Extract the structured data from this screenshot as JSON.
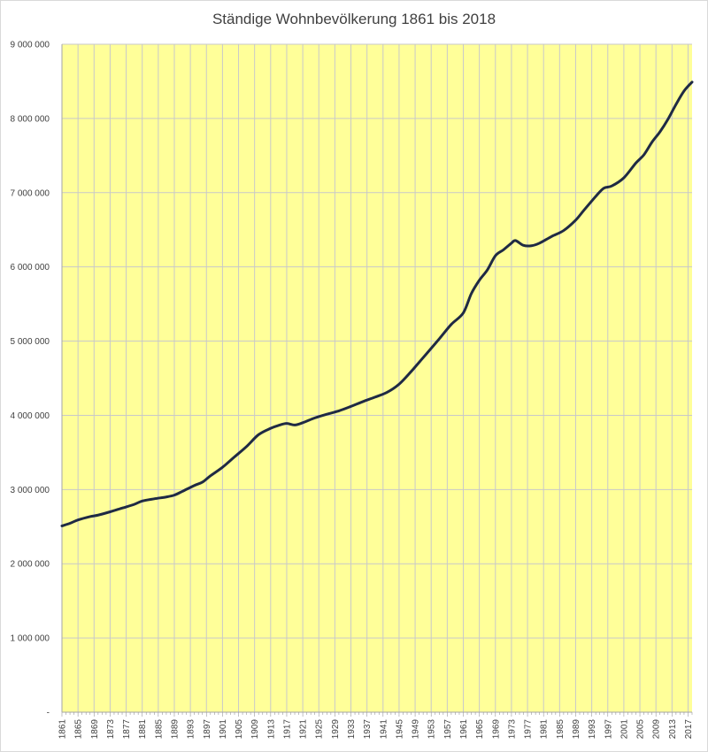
{
  "chart_data": {
    "type": "line",
    "title": "Ständige Wohnbevölkerung 1861 bis 2018",
    "xlabel": "",
    "ylabel": "",
    "xlim": [
      1861,
      2018
    ],
    "ylim": [
      0,
      9000000
    ],
    "y_ticks": [
      0,
      1000000,
      2000000,
      3000000,
      4000000,
      5000000,
      6000000,
      7000000,
      8000000,
      9000000
    ],
    "y_tick_labels": [
      "-",
      "1 000 000",
      "2 000 000",
      "3 000 000",
      "4 000 000",
      "5 000 000",
      "6 000 000",
      "7 000 000",
      "8 000 000",
      "9 000 000"
    ],
    "x_tick_labels": [
      "1861",
      "1865",
      "1869",
      "1873",
      "1877",
      "1881",
      "1885",
      "1889",
      "1893",
      "1897",
      "1901",
      "1905",
      "1909",
      "1913",
      "1917",
      "1921",
      "1925",
      "1929",
      "1933",
      "1937",
      "1941",
      "1945",
      "1949",
      "1953",
      "1957",
      "1961",
      "1965",
      "1969",
      "1973",
      "1977",
      "1981",
      "1985",
      "1989",
      "1993",
      "1997",
      "2001",
      "2005",
      "2009",
      "2013",
      "2017"
    ],
    "grid": true,
    "plot_background": "#FFFF99",
    "line_color": "#1F2A44",
    "series": [
      {
        "values": [
          [
            1861,
            2510000
          ],
          [
            1863,
            2545000
          ],
          [
            1865,
            2590000
          ],
          [
            1868,
            2635000
          ],
          [
            1870,
            2655000
          ],
          [
            1873,
            2700000
          ],
          [
            1876,
            2750000
          ],
          [
            1879,
            2800000
          ],
          [
            1881,
            2845000
          ],
          [
            1884,
            2875000
          ],
          [
            1887,
            2900000
          ],
          [
            1889,
            2925000
          ],
          [
            1891,
            2975000
          ],
          [
            1894,
            3055000
          ],
          [
            1896,
            3100000
          ],
          [
            1898,
            3185000
          ],
          [
            1901,
            3300000
          ],
          [
            1904,
            3440000
          ],
          [
            1907,
            3580000
          ],
          [
            1910,
            3740000
          ],
          [
            1913,
            3825000
          ],
          [
            1915,
            3865000
          ],
          [
            1917,
            3890000
          ],
          [
            1919,
            3870000
          ],
          [
            1921,
            3900000
          ],
          [
            1924,
            3965000
          ],
          [
            1927,
            4015000
          ],
          [
            1930,
            4060000
          ],
          [
            1933,
            4120000
          ],
          [
            1936,
            4185000
          ],
          [
            1939,
            4245000
          ],
          [
            1942,
            4310000
          ],
          [
            1945,
            4420000
          ],
          [
            1948,
            4590000
          ],
          [
            1950,
            4715000
          ],
          [
            1952,
            4840000
          ],
          [
            1955,
            5030000
          ],
          [
            1958,
            5225000
          ],
          [
            1961,
            5380000
          ],
          [
            1963,
            5640000
          ],
          [
            1965,
            5820000
          ],
          [
            1967,
            5960000
          ],
          [
            1969,
            6150000
          ],
          [
            1971,
            6230000
          ],
          [
            1973,
            6320000
          ],
          [
            1974,
            6355000
          ],
          [
            1976,
            6290000
          ],
          [
            1978,
            6285000
          ],
          [
            1980,
            6320000
          ],
          [
            1983,
            6410000
          ],
          [
            1986,
            6490000
          ],
          [
            1989,
            6630000
          ],
          [
            1991,
            6760000
          ],
          [
            1994,
            6950000
          ],
          [
            1996,
            7060000
          ],
          [
            1998,
            7090000
          ],
          [
            2001,
            7200000
          ],
          [
            2004,
            7400000
          ],
          [
            2006,
            7510000
          ],
          [
            2008,
            7680000
          ],
          [
            2010,
            7820000
          ],
          [
            2012,
            7990000
          ],
          [
            2014,
            8190000
          ],
          [
            2016,
            8370000
          ],
          [
            2018,
            8490000
          ]
        ]
      }
    ]
  }
}
